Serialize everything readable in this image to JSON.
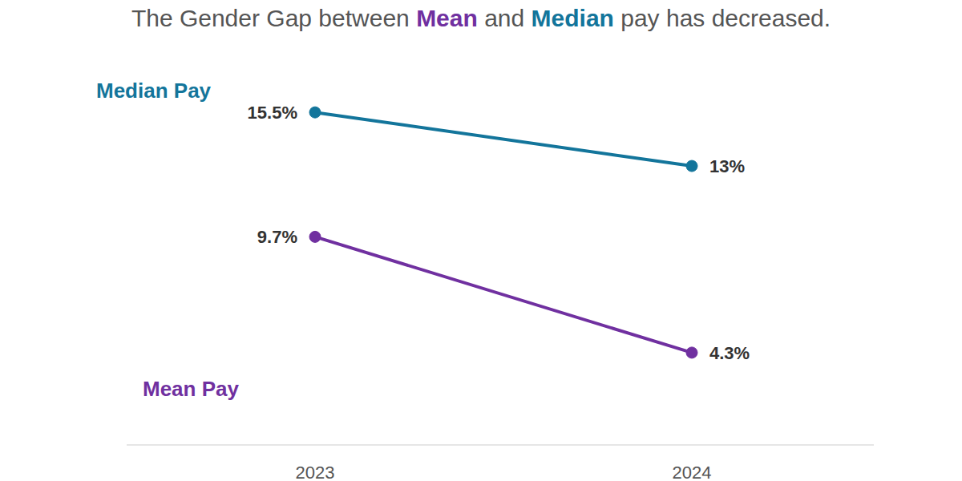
{
  "chart_data": {
    "type": "line",
    "title": "The Gender Gap between Mean and Median pay has decreased.",
    "categories": [
      "2023",
      "2024"
    ],
    "series": [
      {
        "name": "Median Pay",
        "color": "#13759b",
        "values": [
          15.5,
          13
        ],
        "value_labels": [
          "15.5%",
          "13%"
        ],
        "marker": "circle"
      },
      {
        "name": "Mean Pay",
        "color": "#7030a0",
        "values": [
          9.7,
          4.3
        ],
        "value_labels": [
          "9.7%",
          "4.3%"
        ],
        "marker": "circle"
      }
    ],
    "ylim": [
      0,
      17
    ],
    "grid": false,
    "data_labels": true,
    "tick_labels": "x"
  }
}
